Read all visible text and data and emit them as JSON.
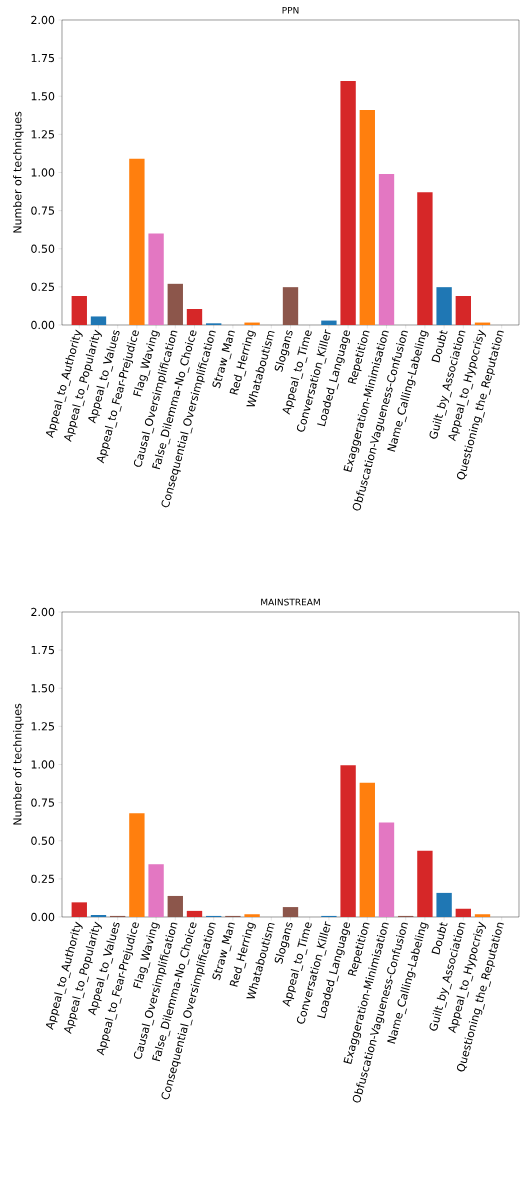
{
  "chart_data": [
    {
      "type": "bar",
      "title": "PPN",
      "ylabel": "Number of techniques",
      "categories": [
        "Appeal_to_Authority",
        "Appeal_to_Popularity",
        "Appeal_to_Values",
        "Appeal_to_Fear-Prejudice",
        "Flag_Waving",
        "Causal_Oversimplification",
        "False_Dilemma-No_Choice",
        "Consequential_Oversimplification",
        "Straw_Man",
        "Red_Herring",
        "Whataboutism",
        "Slogans",
        "Appeal_to_Time",
        "Conversation_Killer",
        "Loaded_Language",
        "Repetition",
        "Exaggeration-Minimisation",
        "Obfuscation-Vagueness-Confusion",
        "Name_Calling-Labeling",
        "Doubt",
        "Guilt_by_Association",
        "Appeal_to_Hypocrisy",
        "Questioning_the_Reputation"
      ],
      "values": [
        0.19,
        0.056,
        0,
        1.09,
        0.6,
        0.27,
        0.105,
        0.011,
        0,
        0.016,
        0,
        0.248,
        0,
        0.029,
        1.6,
        1.41,
        0.99,
        0,
        0.87,
        0.248,
        0.19,
        0.016,
        0
      ],
      "colors": [
        "#d62728",
        "#1f77b4",
        "#8c564b",
        "#ff7f0e",
        "#e377c2",
        "#8c564b",
        "#d62728",
        "#1f77b4",
        "#8c564b",
        "#ff7f0e",
        "#8c564b",
        "#8c564b",
        "#8c564b",
        "#1f77b4",
        "#d62728",
        "#ff7f0e",
        "#e377c2",
        "#8c564b",
        "#d62728",
        "#1f77b4",
        "#d62728",
        "#ff7f0e",
        "#8c564b"
      ],
      "ylim": [
        0,
        2
      ],
      "yticks": [
        {
          "value": 0,
          "label": "0.00"
        },
        {
          "value": 0.25,
          "label": "0.25"
        },
        {
          "value": 0.5,
          "label": "0.50"
        },
        {
          "value": 0.75,
          "label": "0.75"
        },
        {
          "value": 1,
          "label": "1.00"
        },
        {
          "value": 1.25,
          "label": "1.25"
        },
        {
          "value": 1.5,
          "label": "1.50"
        },
        {
          "value": 1.75,
          "label": "1.75"
        },
        {
          "value": 2,
          "label": "2.00"
        }
      ],
      "grid": false
    },
    {
      "type": "bar",
      "title": "MAINSTREAM",
      "ylabel": "Number of techniques",
      "categories": [
        "Appeal_to_Authority",
        "Appeal_to_Popularity",
        "Appeal_to_Values",
        "Appeal_to_Fear-Prejudice",
        "Flag_Waving",
        "Causal_Oversimplification",
        "False_Dilemma-No_Choice",
        "Consequential_Oversimplification",
        "Straw_Man",
        "Red_Herring",
        "Whataboutism",
        "Slogans",
        "Appeal_to_Time",
        "Conversation_Killer",
        "Loaded_Language",
        "Repetition",
        "Exaggeration-Minimisation",
        "Obfuscation-Vagueness-Confusion",
        "Name_Calling-Labeling",
        "Doubt",
        "Guilt_by_Association",
        "Appeal_to_Hypocrisy",
        "Questioning_the_Reputation"
      ],
      "values": [
        0.096,
        0.013,
        0.007,
        0.68,
        0.346,
        0.138,
        0.04,
        0.007,
        0.007,
        0.018,
        0,
        0.065,
        0,
        0.007,
        0.995,
        0.88,
        0.62,
        0.007,
        0.435,
        0.158,
        0.054,
        0.018,
        0
      ],
      "colors": [
        "#d62728",
        "#1f77b4",
        "#8c564b",
        "#ff7f0e",
        "#e377c2",
        "#8c564b",
        "#d62728",
        "#1f77b4",
        "#8c564b",
        "#ff7f0e",
        "#8c564b",
        "#8c564b",
        "#8c564b",
        "#1f77b4",
        "#d62728",
        "#ff7f0e",
        "#e377c2",
        "#8c564b",
        "#d62728",
        "#1f77b4",
        "#d62728",
        "#ff7f0e",
        "#8c564b"
      ],
      "ylim": [
        0,
        2
      ],
      "yticks": [
        {
          "value": 0,
          "label": "0.00"
        },
        {
          "value": 0.25,
          "label": "0.25"
        },
        {
          "value": 0.5,
          "label": "0.50"
        },
        {
          "value": 0.75,
          "label": "0.75"
        },
        {
          "value": 1,
          "label": "1.00"
        },
        {
          "value": 1.25,
          "label": "1.25"
        },
        {
          "value": 1.5,
          "label": "1.50"
        },
        {
          "value": 1.75,
          "label": "1.75"
        },
        {
          "value": 2,
          "label": "2.00"
        }
      ],
      "grid": false
    }
  ]
}
